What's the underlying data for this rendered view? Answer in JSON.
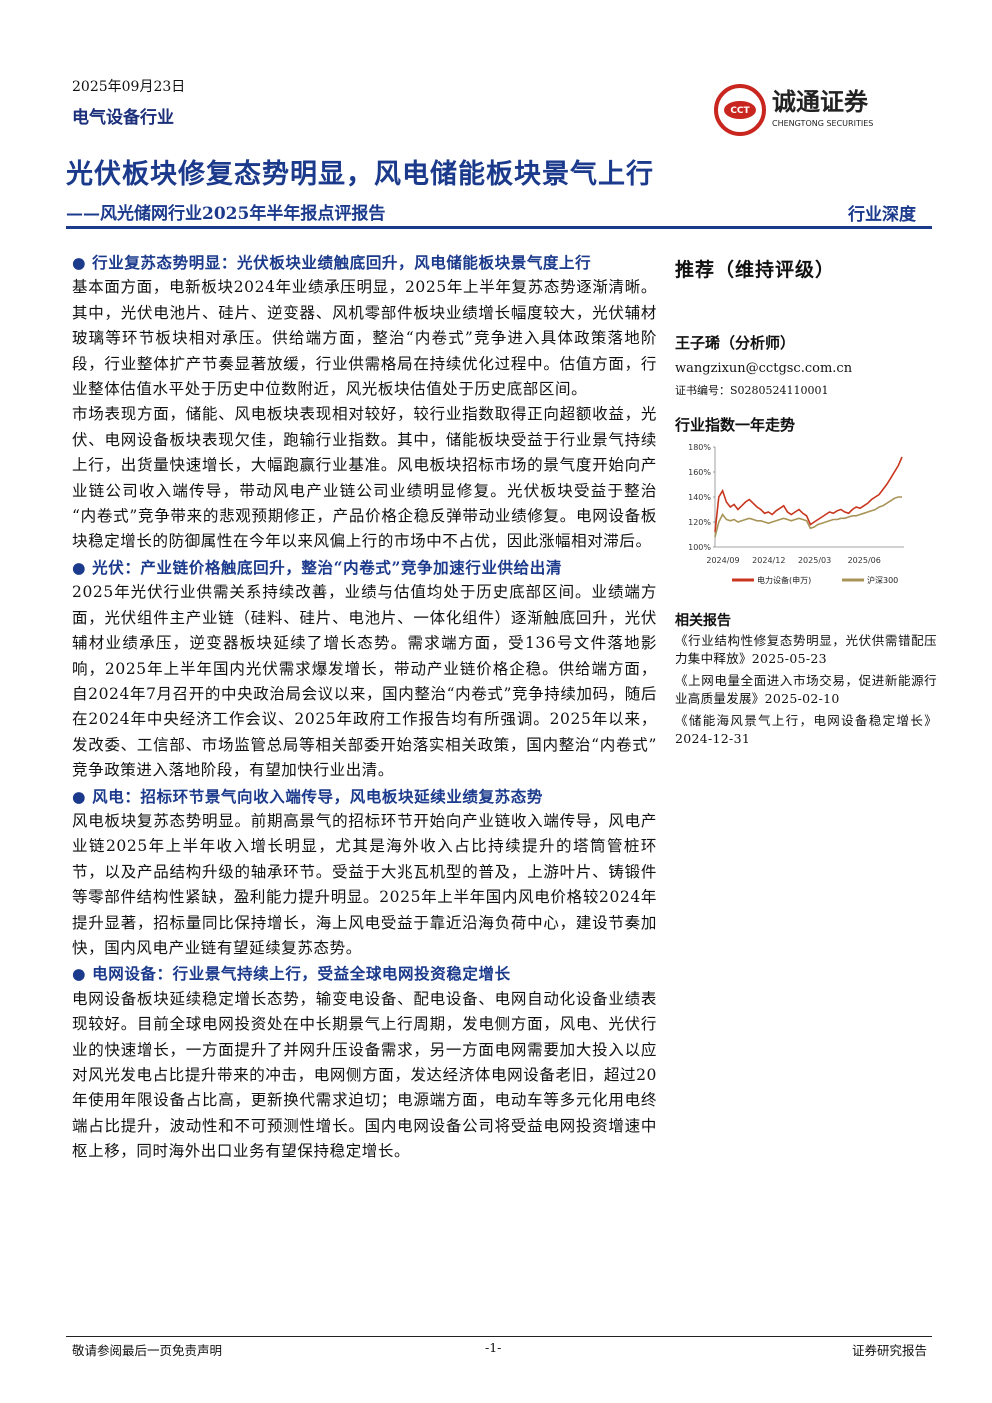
{
  "header": {
    "date": "2025年09月23日",
    "industry": "电气设备行业",
    "logo_name": "诚通证券",
    "logo_en": "CHENGTONG SECURITIES",
    "logo_mark": "CCT",
    "title": "光伏板块修复态势明显，风电储能板块景气上行",
    "subtitle": "——风光储网行业2025年半年报点评报告",
    "tag": "行业深度"
  },
  "sections": [
    {
      "heading": "行业复苏态势明显：光伏板块业绩触底回升，风电储能板块景气度上行",
      "paragraphs": [
        "基本面方面，电新板块2024年业绩承压明显，2025年上半年复苏态势逐渐清晰。其中，光伏电池片、硅片、逆变器、风机零部件板块业绩增长幅度较大，光伏辅材玻璃等环节板块相对承压。供给端方面，整治“内卷式”竞争进入具体政策落地阶段，行业整体扩产节奏显著放缓，行业供需格局在持续优化过程中。估值方面，行业整体估值水平处于历史中位数附近，风光板块估值处于历史底部区间。",
        "市场表现方面，储能、风电板块表现相对较好，较行业指数取得正向超额收益，光伏、电网设备板块表现欠佳，跑输行业指数。其中，储能板块受益于行业景气持续上行，出货量快速增长，大幅跑赢行业基准。风电板块招标市场的景气度开始向产业链公司收入端传导，带动风电产业链公司业绩明显修复。光伏板块受益于整治“内卷式”竞争带来的悲观预期修正，产品价格企稳反弹带动业绩修复。电网设备板块稳定增长的防御属性在今年以来风偏上行的市场中不占优，因此涨幅相对滞后。"
      ]
    },
    {
      "heading": "光伏：产业链价格触底回升，整治“内卷式”竞争加速行业供给出清",
      "paragraphs": [
        "2025年光伏行业供需关系持续改善，业绩与估值均处于历史底部区间。业绩端方面，光伏组件主产业链（硅料、硅片、电池片、一体化组件）逐渐触底回升，光伏辅材业绩承压，逆变器板块延续了增长态势。需求端方面，受136号文件落地影响，2025年上半年国内光伏需求爆发增长，带动产业链价格企稳。供给端方面，自2024年7月召开的中央政治局会议以来，国内整治“内卷式”竞争持续加码，随后在2024年中央经济工作会议、2025年政府工作报告均有所强调。2025年以来，发改委、工信部、市场监管总局等相关部委开始落实相关政策，国内整治“内卷式”竞争政策进入落地阶段，有望加快行业出清。"
      ]
    },
    {
      "heading": "风电：招标环节景气向收入端传导，风电板块延续业绩复苏态势",
      "paragraphs": [
        "风电板块复苏态势明显。前期高景气的招标环节开始向产业链收入端传导，风电产业链2025年上半年收入增长明显，尤其是海外收入占比持续提升的塔筒管桩环节，以及产品结构升级的轴承环节。受益于大兆瓦机型的普及，上游叶片、铸锻件等零部件结构性紧缺，盈利能力提升明显。2025年上半年国内风电价格较2024年提升显著，招标量同比保持增长，海上风电受益于靠近沿海负荷中心，建设节奏加快，国内风电产业链有望延续复苏态势。"
      ]
    },
    {
      "heading": "电网设备：行业景气持续上行，受益全球电网投资稳定增长",
      "paragraphs": [
        "电网设备板块延续稳定增长态势，输变电设备、配电设备、电网自动化设备业绩表现较好。目前全球电网投资处在中长期景气上行周期，发电侧方面，风电、光伏行业的快速增长，一方面提升了并网升压设备需求，另一方面电网需要加大投入以应对风光发电占比提升带来的冲击，电网侧方面，发达经济体电网设备老旧，超过20年使用年限设备占比高，更新换代需求迫切；电源端方面，电动车等多元化用电终端占比提升，波动性和不可预测性增长。国内电网设备公司将受益电网投资增速中枢上移，同时海外出口业务有望保持稳定增长。"
      ]
    }
  ],
  "sidebar": {
    "rating": "推荐（维持评级）",
    "analyst": "王子琋（分析师）",
    "email": "wangzixun@cctgsc.com.cn",
    "cert": "证书编号：S0280524110001",
    "chart_title": "行业指数一年走势",
    "chart": {
      "type": "line",
      "categories": [
        "2024/09",
        null,
        null,
        null,
        null,
        null,
        null,
        null,
        null,
        null,
        null,
        null,
        "2024/12",
        null,
        null,
        null,
        null,
        null,
        null,
        null,
        null,
        null,
        null,
        null,
        "2025/03",
        null,
        null,
        null,
        null,
        null,
        null,
        null,
        null,
        null,
        null,
        null,
        null,
        "2025/06",
        null,
        null,
        null,
        null,
        null,
        null,
        null,
        null,
        null,
        null,
        null,
        null
      ],
      "series": [
        {
          "name": "电力设备(申万)",
          "color": "#c8361e",
          "values": [
            112,
            140,
            145,
            136,
            132,
            134,
            130,
            133,
            136,
            138,
            135,
            132,
            130,
            127,
            128,
            126,
            129,
            131,
            133,
            128,
            126,
            128,
            130,
            127,
            125,
            118,
            120,
            122,
            124,
            126,
            128,
            127,
            129,
            130,
            128,
            127,
            130,
            132,
            131,
            133,
            135,
            138,
            140,
            142,
            146,
            150,
            155,
            160,
            165,
            172
          ]
        },
        {
          "name": "沪深300",
          "color": "#a89457",
          "values": [
            108,
            120,
            126,
            122,
            121,
            122,
            120,
            121,
            122,
            123,
            122,
            121,
            121,
            120,
            119,
            120,
            121,
            122,
            123,
            122,
            121,
            122,
            123,
            122,
            121,
            115,
            116,
            118,
            119,
            120,
            121,
            122,
            122,
            123,
            123,
            124,
            125,
            125,
            126,
            127,
            128,
            129,
            130,
            132,
            133,
            135,
            137,
            139,
            140,
            140
          ]
        }
      ],
      "ylim": [
        100,
        180
      ],
      "yticks": [
        {
          "value": 100,
          "label": "100%"
        },
        {
          "value": 120,
          "label": "120%"
        },
        {
          "value": 140,
          "label": "140%"
        },
        {
          "value": 160,
          "label": "160%"
        },
        {
          "value": 180,
          "label": "180%"
        }
      ]
    },
    "related_heading": "相关报告",
    "related": [
      "《行业结构性修复态势明显，光伏供需错配压力集中释放》2025-05-23",
      "《上网电量全面进入市场交易，促进新能源行业高质量发展》2025-02-10",
      "《储能海风景气上行，电网设备稳定增长》2024-12-31"
    ]
  },
  "footer": {
    "left": "敬请参阅最后一页免责声明",
    "page": "-1-",
    "right": "证券研究报告"
  }
}
